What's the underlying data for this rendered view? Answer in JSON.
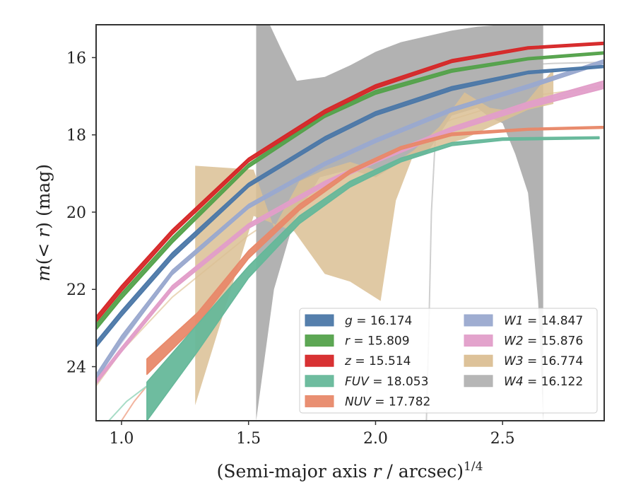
{
  "chart_data": {
    "type": "line",
    "title": "",
    "xlabel": "(Semi-major axis r / arcsec)^1/4",
    "ylabel": "m(< r) (mag)",
    "xlim": [
      0.9,
      2.9
    ],
    "ylim": [
      25.4,
      15.15
    ],
    "y_inverted": true,
    "xticks": [
      "1.0",
      "1.5",
      "2.0",
      "2.5"
    ],
    "yticks": [
      "16",
      "18",
      "20",
      "22",
      "24"
    ],
    "grid": false,
    "legend_position": "lower-right",
    "legend_columns": 2,
    "series": [
      {
        "name": "g = 16.174",
        "band": "g",
        "total_mag": "16.174",
        "color": "#4c78a8",
        "kind": "band",
        "upper": [
          [
            0.9,
            23.35
          ],
          [
            1.0,
            22.55
          ],
          [
            1.2,
            21.05
          ],
          [
            1.5,
            19.25
          ],
          [
            1.8,
            18.05
          ],
          [
            2.0,
            17.4
          ],
          [
            2.3,
            16.75
          ],
          [
            2.6,
            16.35
          ],
          [
            2.9,
            16.2
          ]
        ],
        "lower": [
          [
            0.9,
            23.5
          ],
          [
            1.0,
            22.7
          ],
          [
            1.2,
            21.2
          ],
          [
            1.5,
            19.35
          ],
          [
            1.8,
            18.15
          ],
          [
            2.0,
            17.5
          ],
          [
            2.3,
            16.85
          ],
          [
            2.6,
            16.42
          ],
          [
            2.9,
            16.26
          ]
        ]
      },
      {
        "name": "r = 15.809",
        "band": "r",
        "total_mag": "15.809",
        "color": "#54a24b",
        "kind": "band",
        "upper": [
          [
            0.9,
            22.9
          ],
          [
            1.0,
            22.1
          ],
          [
            1.2,
            20.65
          ],
          [
            1.5,
            18.75
          ],
          [
            1.8,
            17.45
          ],
          [
            2.0,
            16.85
          ],
          [
            2.3,
            16.3
          ],
          [
            2.6,
            16.0
          ],
          [
            2.9,
            15.85
          ]
        ],
        "lower": [
          [
            0.9,
            23.05
          ],
          [
            1.0,
            22.25
          ],
          [
            1.2,
            20.8
          ],
          [
            1.5,
            18.85
          ],
          [
            1.8,
            17.55
          ],
          [
            2.0,
            16.95
          ],
          [
            2.3,
            16.38
          ],
          [
            2.6,
            16.06
          ],
          [
            2.9,
            15.91
          ]
        ]
      },
      {
        "name": "z = 15.514",
        "band": "z",
        "total_mag": "15.514",
        "color": "#d62728",
        "kind": "band",
        "upper": [
          [
            0.9,
            22.7
          ],
          [
            1.0,
            21.9
          ],
          [
            1.2,
            20.45
          ],
          [
            1.5,
            18.6
          ],
          [
            1.8,
            17.35
          ],
          [
            2.0,
            16.7
          ],
          [
            2.3,
            16.05
          ],
          [
            2.6,
            15.72
          ],
          [
            2.9,
            15.6
          ]
        ],
        "lower": [
          [
            0.9,
            22.85
          ],
          [
            1.0,
            22.05
          ],
          [
            1.2,
            20.58
          ],
          [
            1.5,
            18.7
          ],
          [
            1.8,
            17.45
          ],
          [
            2.0,
            16.8
          ],
          [
            2.3,
            16.13
          ],
          [
            2.6,
            15.78
          ],
          [
            2.9,
            15.66
          ]
        ]
      },
      {
        "name": "FUV = 18.053",
        "band": "FUV",
        "total_mag": "18.053",
        "color": "#66b89a",
        "kind": "band",
        "upper": [
          [
            1.1,
            24.4
          ],
          [
            1.3,
            22.9
          ],
          [
            1.5,
            21.4
          ],
          [
            1.7,
            20.1
          ],
          [
            1.9,
            19.2
          ],
          [
            2.1,
            18.6
          ],
          [
            2.3,
            18.2
          ],
          [
            2.5,
            18.08
          ],
          [
            2.88,
            18.05
          ]
        ],
        "lower": [
          [
            1.1,
            25.4
          ],
          [
            1.3,
            23.6
          ],
          [
            1.5,
            21.7
          ],
          [
            1.7,
            20.3
          ],
          [
            1.9,
            19.35
          ],
          [
            2.1,
            18.7
          ],
          [
            2.3,
            18.28
          ],
          [
            2.5,
            18.14
          ],
          [
            2.88,
            18.1
          ]
        ]
      },
      {
        "name": "NUV = 17.782",
        "band": "NUV",
        "total_mag": "17.782",
        "color": "#e8896a",
        "kind": "band",
        "upper": [
          [
            1.1,
            23.8
          ],
          [
            1.3,
            22.6
          ],
          [
            1.5,
            21.0
          ],
          [
            1.7,
            19.8
          ],
          [
            1.9,
            18.9
          ],
          [
            2.1,
            18.3
          ],
          [
            2.3,
            17.95
          ],
          [
            2.6,
            17.83
          ],
          [
            2.9,
            17.78
          ]
        ],
        "lower": [
          [
            1.1,
            24.2
          ],
          [
            1.3,
            22.9
          ],
          [
            1.5,
            21.2
          ],
          [
            1.7,
            19.95
          ],
          [
            1.9,
            19.0
          ],
          [
            2.1,
            18.38
          ],
          [
            2.3,
            18.02
          ],
          [
            2.6,
            17.88
          ],
          [
            2.9,
            17.83
          ]
        ]
      },
      {
        "name": "W1 = 14.847",
        "band": "W1",
        "total_mag": "14.847",
        "color": "#9aa9cf",
        "kind": "band",
        "upper": [
          [
            0.9,
            24.2
          ],
          [
            1.0,
            23.2
          ],
          [
            1.2,
            21.5
          ],
          [
            1.5,
            19.8
          ],
          [
            1.8,
            18.7
          ],
          [
            2.0,
            18.1
          ],
          [
            2.3,
            17.3
          ],
          [
            2.6,
            16.7
          ],
          [
            2.9,
            16.05
          ]
        ],
        "lower": [
          [
            0.9,
            24.35
          ],
          [
            1.0,
            23.35
          ],
          [
            1.2,
            21.62
          ],
          [
            1.5,
            19.9
          ],
          [
            1.8,
            18.8
          ],
          [
            2.0,
            18.2
          ],
          [
            2.3,
            17.4
          ],
          [
            2.6,
            16.8
          ],
          [
            2.9,
            16.15
          ]
        ]
      },
      {
        "name": "W2 = 15.876",
        "band": "W2",
        "total_mag": "15.876",
        "color": "#e29ec9",
        "kind": "band",
        "upper": [
          [
            0.9,
            24.35
          ],
          [
            1.0,
            23.5
          ],
          [
            1.2,
            21.9
          ],
          [
            1.5,
            20.3
          ],
          [
            1.8,
            19.2
          ],
          [
            2.0,
            18.6
          ],
          [
            2.3,
            17.8
          ],
          [
            2.6,
            17.15
          ],
          [
            2.9,
            16.6
          ]
        ],
        "lower": [
          [
            0.9,
            24.45
          ],
          [
            1.0,
            23.62
          ],
          [
            1.2,
            22.02
          ],
          [
            1.5,
            20.42
          ],
          [
            1.8,
            19.32
          ],
          [
            2.0,
            18.72
          ],
          [
            2.3,
            17.92
          ],
          [
            2.6,
            17.3
          ],
          [
            2.9,
            16.8
          ]
        ]
      },
      {
        "name": "W3 = 16.774",
        "band": "W3",
        "total_mag": "16.774",
        "color": "#dbbf94",
        "kind": "band",
        "upper": [
          [
            1.29,
            18.8
          ],
          [
            1.52,
            18.9
          ],
          [
            1.6,
            20.4
          ],
          [
            1.7,
            19.2
          ],
          [
            1.8,
            18.9
          ],
          [
            1.9,
            18.7
          ],
          [
            2.02,
            18.95
          ],
          [
            2.15,
            18.4
          ],
          [
            2.25,
            17.8
          ],
          [
            2.35,
            16.9
          ],
          [
            2.45,
            17.3
          ],
          [
            2.55,
            17.4
          ],
          [
            2.6,
            17.1
          ],
          [
            2.7,
            16.3
          ]
        ],
        "lower": [
          [
            1.29,
            25.0
          ],
          [
            1.52,
            20.1
          ],
          [
            1.68,
            20.5
          ],
          [
            1.8,
            21.6
          ],
          [
            1.9,
            21.8
          ],
          [
            2.02,
            22.3
          ],
          [
            2.08,
            19.7
          ],
          [
            2.15,
            18.5
          ],
          [
            2.25,
            18.3
          ],
          [
            2.35,
            18.1
          ],
          [
            2.45,
            17.8
          ],
          [
            2.55,
            17.5
          ],
          [
            2.6,
            17.35
          ],
          [
            2.7,
            17.2
          ]
        ]
      },
      {
        "name": "W4 = 16.122",
        "band": "W4",
        "total_mag": "16.122",
        "color": "#b2b2b2",
        "kind": "band",
        "upper": [
          [
            1.53,
            15.1
          ],
          [
            1.58,
            15.1
          ],
          [
            1.63,
            15.8
          ],
          [
            1.69,
            16.6
          ],
          [
            1.8,
            16.5
          ],
          [
            1.9,
            16.2
          ],
          [
            2.0,
            15.85
          ],
          [
            2.1,
            15.6
          ],
          [
            2.2,
            15.45
          ],
          [
            2.3,
            15.3
          ],
          [
            2.4,
            15.2
          ],
          [
            2.5,
            15.15
          ],
          [
            2.66,
            15.1
          ]
        ],
        "lower": [
          [
            1.53,
            25.4
          ],
          [
            1.6,
            22.0
          ],
          [
            1.68,
            20.2
          ],
          [
            1.78,
            19.1
          ],
          [
            1.9,
            18.9
          ],
          [
            2.0,
            19.1
          ],
          [
            2.1,
            18.7
          ],
          [
            2.2,
            18.5
          ],
          [
            2.3,
            17.5
          ],
          [
            2.4,
            17.3
          ],
          [
            2.45,
            17.55
          ],
          [
            2.5,
            17.7
          ],
          [
            2.55,
            18.5
          ],
          [
            2.6,
            19.5
          ],
          [
            2.62,
            20.8
          ],
          [
            2.64,
            22.3
          ],
          [
            2.66,
            25.4
          ]
        ]
      }
    ],
    "extra_lines": [
      {
        "color": "#cfcfcf",
        "points": [
          [
            2.2,
            25.4
          ],
          [
            2.21,
            23.0
          ],
          [
            2.22,
            20.0
          ],
          [
            2.24,
            17.5
          ],
          [
            2.27,
            16.6
          ],
          [
            2.32,
            16.32
          ],
          [
            2.4,
            16.25
          ],
          [
            2.55,
            16.2
          ],
          [
            2.7,
            16.15
          ],
          [
            2.9,
            16.12
          ]
        ]
      },
      {
        "color": "#c9d3ea",
        "points": [
          [
            0.9,
            24.3
          ],
          [
            1.2,
            21.56
          ],
          [
            1.5,
            19.85
          ],
          [
            1.8,
            18.75
          ],
          [
            2.0,
            18.15
          ],
          [
            2.3,
            17.35
          ],
          [
            2.6,
            16.75
          ],
          [
            2.9,
            16.1
          ]
        ]
      },
      {
        "color": "#f0c6df",
        "points": [
          [
            0.9,
            24.4
          ],
          [
            1.2,
            21.96
          ],
          [
            1.5,
            20.36
          ],
          [
            1.8,
            19.26
          ],
          [
            2.0,
            18.66
          ],
          [
            2.3,
            17.86
          ],
          [
            2.6,
            17.22
          ],
          [
            2.9,
            16.7
          ]
        ]
      },
      {
        "color": "#ead7b9",
        "points": [
          [
            0.9,
            24.5
          ],
          [
            1.0,
            23.6
          ],
          [
            1.2,
            22.2
          ],
          [
            1.5,
            20.6
          ],
          [
            1.8,
            19.3
          ],
          [
            2.0,
            18.5
          ],
          [
            2.3,
            17.6
          ],
          [
            2.6,
            17.0
          ],
          [
            2.9,
            16.75
          ]
        ]
      },
      {
        "color": "#f2b49f",
        "points": [
          [
            1.0,
            25.4
          ],
          [
            1.05,
            24.9
          ],
          [
            1.1,
            24.5
          ]
        ]
      },
      {
        "color": "#a7dcc6",
        "points": [
          [
            0.95,
            25.4
          ],
          [
            1.02,
            24.9
          ],
          [
            1.1,
            24.5
          ]
        ]
      }
    ]
  }
}
